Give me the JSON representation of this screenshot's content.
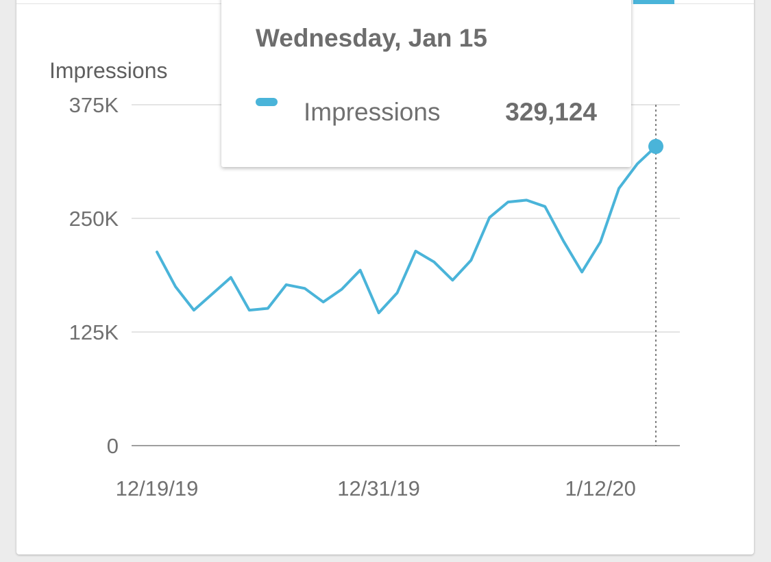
{
  "chart_data": {
    "type": "line",
    "ylabel": "Impressions",
    "ylim": [
      0,
      375000
    ],
    "y_ticks": [
      {
        "value": 0,
        "label": "0"
      },
      {
        "value": 125000,
        "label": "125K"
      },
      {
        "value": 250000,
        "label": "250K"
      },
      {
        "value": 375000,
        "label": "375K"
      }
    ],
    "x_tick_labels": [
      "12/19/19",
      "12/31/19",
      "1/12/20"
    ],
    "x": [
      "2019-12-19",
      "2019-12-20",
      "2019-12-21",
      "2019-12-22",
      "2019-12-23",
      "2019-12-24",
      "2019-12-25",
      "2019-12-26",
      "2019-12-27",
      "2019-12-28",
      "2019-12-29",
      "2019-12-30",
      "2019-12-31",
      "2020-01-01",
      "2020-01-02",
      "2020-01-03",
      "2020-01-04",
      "2020-01-05",
      "2020-01-06",
      "2020-01-07",
      "2020-01-08",
      "2020-01-09",
      "2020-01-10",
      "2020-01-11",
      "2020-01-12",
      "2020-01-13",
      "2020-01-14",
      "2020-01-15"
    ],
    "series": [
      {
        "name": "Impressions",
        "color": "#4ab4d9",
        "values": [
          213000,
          175000,
          149000,
          167000,
          185000,
          149000,
          151000,
          177000,
          173000,
          158000,
          172000,
          193000,
          146000,
          168000,
          214000,
          202000,
          182000,
          204000,
          251000,
          268000,
          270000,
          263000,
          225000,
          191000,
          224000,
          283000,
          310000,
          329124
        ]
      }
    ],
    "grid": true,
    "highlight_index": 27
  },
  "tooltip": {
    "date": "Wednesday, Jan 15",
    "series_name": "Impressions",
    "value": "329,124"
  }
}
